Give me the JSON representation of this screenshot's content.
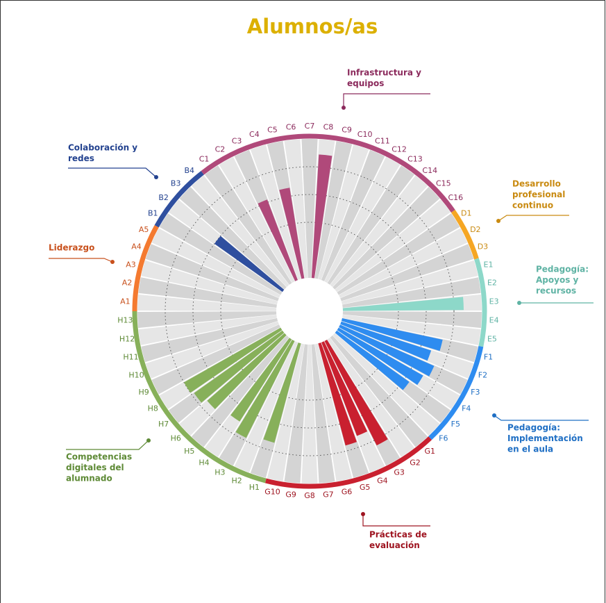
{
  "chart_data": {
    "type": "radial_bar",
    "title": "Alumnos/as",
    "ylim": [
      0,
      5
    ],
    "yticks": [
      2,
      3,
      4
    ],
    "grid": true,
    "groups": [
      {
        "name": [
          "Liderazgo"
        ],
        "color": "#f47a30",
        "text_color": "#c8501c",
        "categories": [
          "A1",
          "A2",
          "A3",
          "A4",
          "A5"
        ],
        "values": [
          null,
          null,
          null,
          null,
          null
        ]
      },
      {
        "name": [
          "Colaboración y",
          "redes"
        ],
        "color": "#2f4f9f",
        "text_color": "#23428f",
        "categories": [
          "B1",
          "B2",
          "B3",
          "B4"
        ],
        "values": [
          null,
          3,
          null,
          null
        ]
      },
      {
        "name": [
          "Infrastructura y",
          "equipos"
        ],
        "color": "#b0497a",
        "text_color": "#8b2a5c",
        "categories": [
          "C1",
          "C2",
          "C3",
          "C4",
          "C5",
          "C6",
          "C7",
          "C8",
          "C9",
          "C10",
          "C11",
          "C12",
          "C13",
          "C14",
          "C15",
          "C16"
        ],
        "values": [
          null,
          null,
          3.1,
          null,
          3.3,
          null,
          null,
          4.45,
          null,
          null,
          null,
          null,
          null,
          null,
          null,
          null
        ]
      },
      {
        "name": [
          "Desarrollo",
          "profesional",
          "continuo"
        ],
        "color": "#f5a623",
        "text_color": "#c98a10",
        "categories": [
          "D1",
          "D2",
          "D3"
        ],
        "values": [
          null,
          null,
          null
        ]
      },
      {
        "name": [
          "Pedagogía:",
          "Apoyos y",
          "recursos"
        ],
        "color": "#8dd8c9",
        "text_color": "#5fb3a4",
        "categories": [
          "E1",
          "E2",
          "E3",
          "E4",
          "E5"
        ],
        "values": [
          null,
          null,
          4.35,
          null,
          null
        ]
      },
      {
        "name": [
          "Pedagogía:",
          "Implementación",
          "en el aula"
        ],
        "color": "#2e8cf0",
        "text_color": "#1f6fc4",
        "categories": [
          "F1",
          "F2",
          "F3",
          "F4",
          "F5",
          "F6"
        ],
        "values": [
          3.7,
          3.4,
          3.7,
          3.5,
          3.2,
          null
        ]
      },
      {
        "name": [
          "Prácticas de",
          "evaluación"
        ],
        "color": "#c9202f",
        "text_color": "#9e1420",
        "categories": [
          "G1",
          "G2",
          "G3",
          "G4",
          "G5",
          "G6",
          "G7",
          "G8",
          "G9",
          "G10"
        ],
        "values": [
          null,
          null,
          4.2,
          3.6,
          3.8,
          null,
          null,
          null,
          null,
          null
        ]
      },
      {
        "name": [
          "Competencias",
          "digitales del",
          "alumnado"
        ],
        "color": "#87b05a",
        "text_color": "#5e8a36",
        "categories": [
          "H1",
          "H2",
          "H3",
          "H4",
          "H5",
          "H6",
          "H7",
          "H8",
          "H9",
          "H10",
          "H11",
          "H12",
          "H13"
        ],
        "values": [
          3.7,
          null,
          3.9,
          3.5,
          null,
          3.7,
          3.9,
          4.0,
          null,
          null,
          null,
          null,
          null
        ]
      }
    ]
  }
}
